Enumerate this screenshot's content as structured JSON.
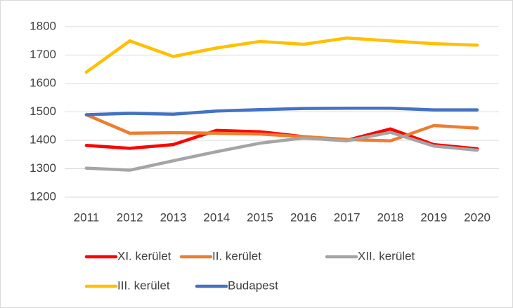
{
  "chart_data": {
    "type": "line",
    "categories": [
      "2011",
      "2012",
      "2013",
      "2014",
      "2015",
      "2016",
      "2017",
      "2018",
      "2019",
      "2020"
    ],
    "series": [
      {
        "name": "XI. kerület",
        "color": "#ff0000",
        "values": [
          1382,
          1372,
          1385,
          1435,
          1430,
          1413,
          1400,
          1440,
          1385,
          1370
        ]
      },
      {
        "name": "II. kerület",
        "color": "#ed7d31",
        "values": [
          1490,
          1425,
          1427,
          1425,
          1422,
          1413,
          1403,
          1398,
          1452,
          1443
        ]
      },
      {
        "name": "XII. kerület",
        "color": "#a5a5a5",
        "values": [
          1302,
          1295,
          1328,
          1360,
          1390,
          1408,
          1398,
          1428,
          1380,
          1365
        ]
      },
      {
        "name": "III. kerület",
        "color": "#ffc000",
        "values": [
          1640,
          1750,
          1695,
          1725,
          1748,
          1738,
          1760,
          1750,
          1740,
          1735
        ]
      },
      {
        "name": "Budapest",
        "color": "#4472c4",
        "values": [
          1490,
          1495,
          1492,
          1503,
          1508,
          1512,
          1513,
          1513,
          1507,
          1507
        ]
      }
    ],
    "ylim": [
      1200,
      1800
    ],
    "yticks": [
      1200,
      1300,
      1400,
      1500,
      1600,
      1700,
      1800
    ],
    "grid": true,
    "legend": "bottom"
  }
}
